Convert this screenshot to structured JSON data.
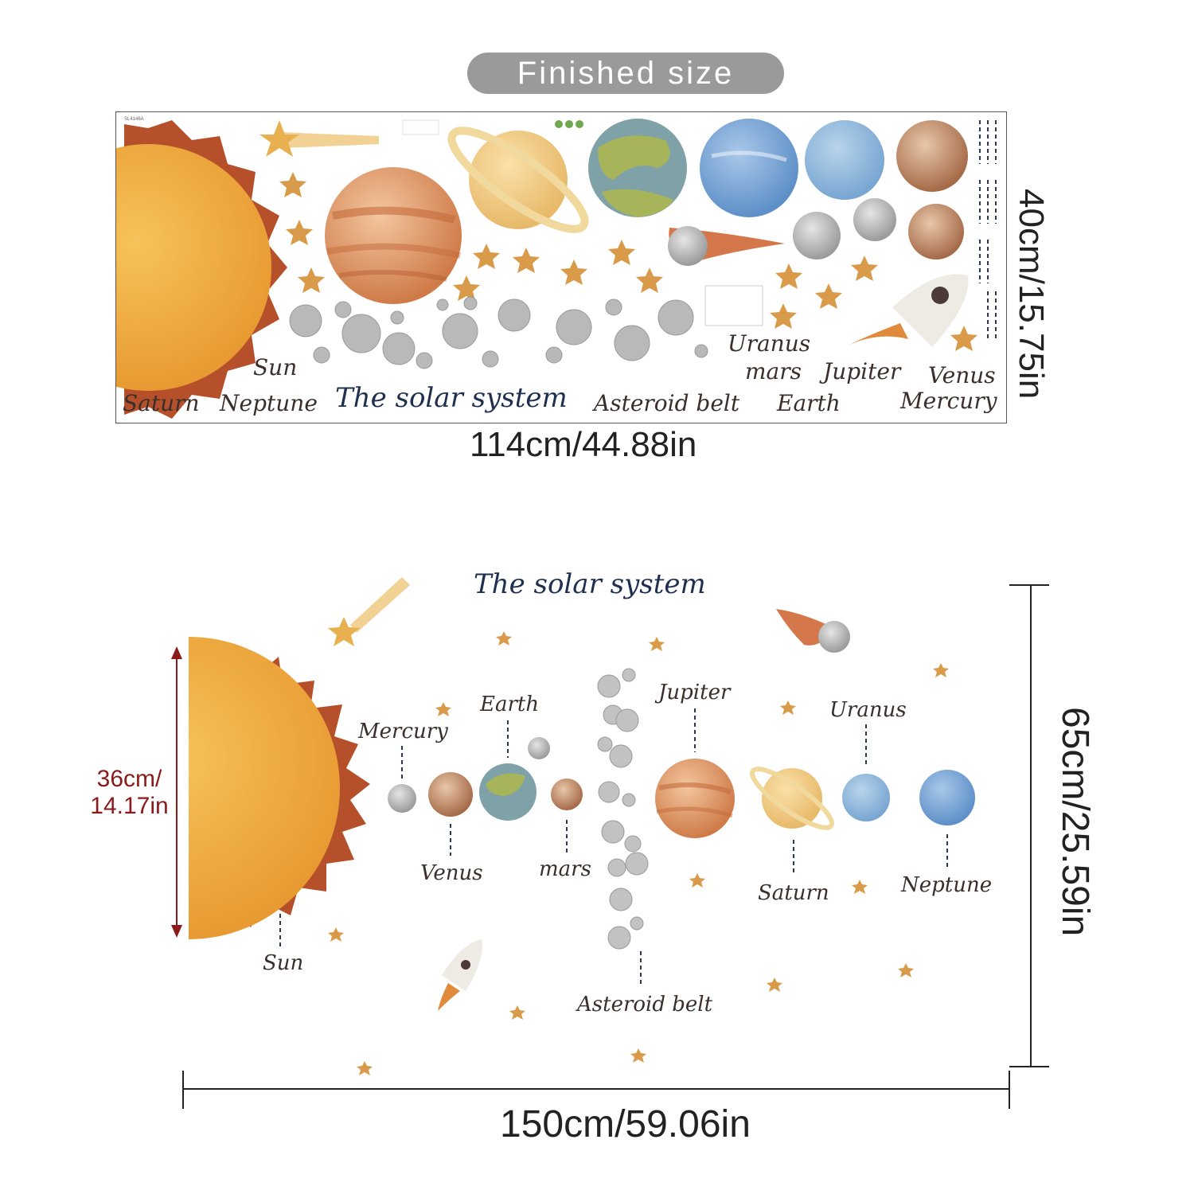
{
  "badge": {
    "label": "Finished size"
  },
  "sheet": {
    "code": "SL4146A",
    "title": "The solar system",
    "labels": {
      "saturn": "Saturn",
      "sun": "Sun",
      "neptune": "Neptune",
      "asteroid_belt": "Asteroid belt",
      "uranus": "Uranus",
      "mars": "mars",
      "jupiter": "Jupiter",
      "venus": "Venus",
      "earth": "Earth",
      "mercury": "Mercury"
    },
    "width_label": "114cm/44.88in",
    "height_label": "40cm/15.75in"
  },
  "layout": {
    "title": "The solar system",
    "labels": {
      "mercury": "Mercury",
      "earth": "Earth",
      "jupiter": "Jupiter",
      "uranus": "Uranus",
      "venus": "Venus",
      "mars": "mars",
      "saturn": "Saturn",
      "neptune": "Neptune",
      "sun": "Sun",
      "asteroid_belt": "Asteroid belt"
    },
    "sun_height_label_line1": "36cm/",
    "sun_height_label_line2": "14.17in",
    "width_label": "150cm/59.06in",
    "height_label": "65cm/25.59in"
  },
  "colors": {
    "sun_ray": "#b5502a",
    "sun_body": "#f0a537",
    "star": "#d99b4a",
    "asteroid": "#b9b9b9",
    "dimension_red": "#8b1a1a",
    "title_navy": "#1f2f4f"
  }
}
